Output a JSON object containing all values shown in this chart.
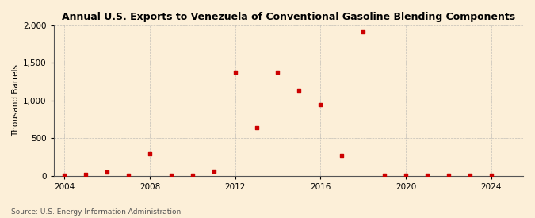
{
  "title": "Annual U.S. Exports to Venezuela of Conventional Gasoline Blending Components",
  "ylabel": "Thousand Barrels",
  "source": "Source: U.S. Energy Information Administration",
  "xlim": [
    2003.5,
    2025.5
  ],
  "ylim": [
    0,
    2000
  ],
  "yticks": [
    0,
    500,
    1000,
    1500,
    2000
  ],
  "xticks": [
    2004,
    2008,
    2012,
    2016,
    2020,
    2024
  ],
  "background_color": "#fcefd8",
  "grid_color": "#aaaaaa",
  "marker_color": "#cc0000",
  "data": {
    "2004": 5,
    "2005": 20,
    "2006": 50,
    "2007": 5,
    "2008": 290,
    "2009": 10,
    "2010": 10,
    "2011": 60,
    "2012": 1375,
    "2013": 645,
    "2014": 1380,
    "2015": 1140,
    "2016": 945,
    "2017": 270,
    "2018": 1920,
    "2019": 5,
    "2020": 5,
    "2021": 5,
    "2022": 5,
    "2023": 5,
    "2024": 5
  }
}
